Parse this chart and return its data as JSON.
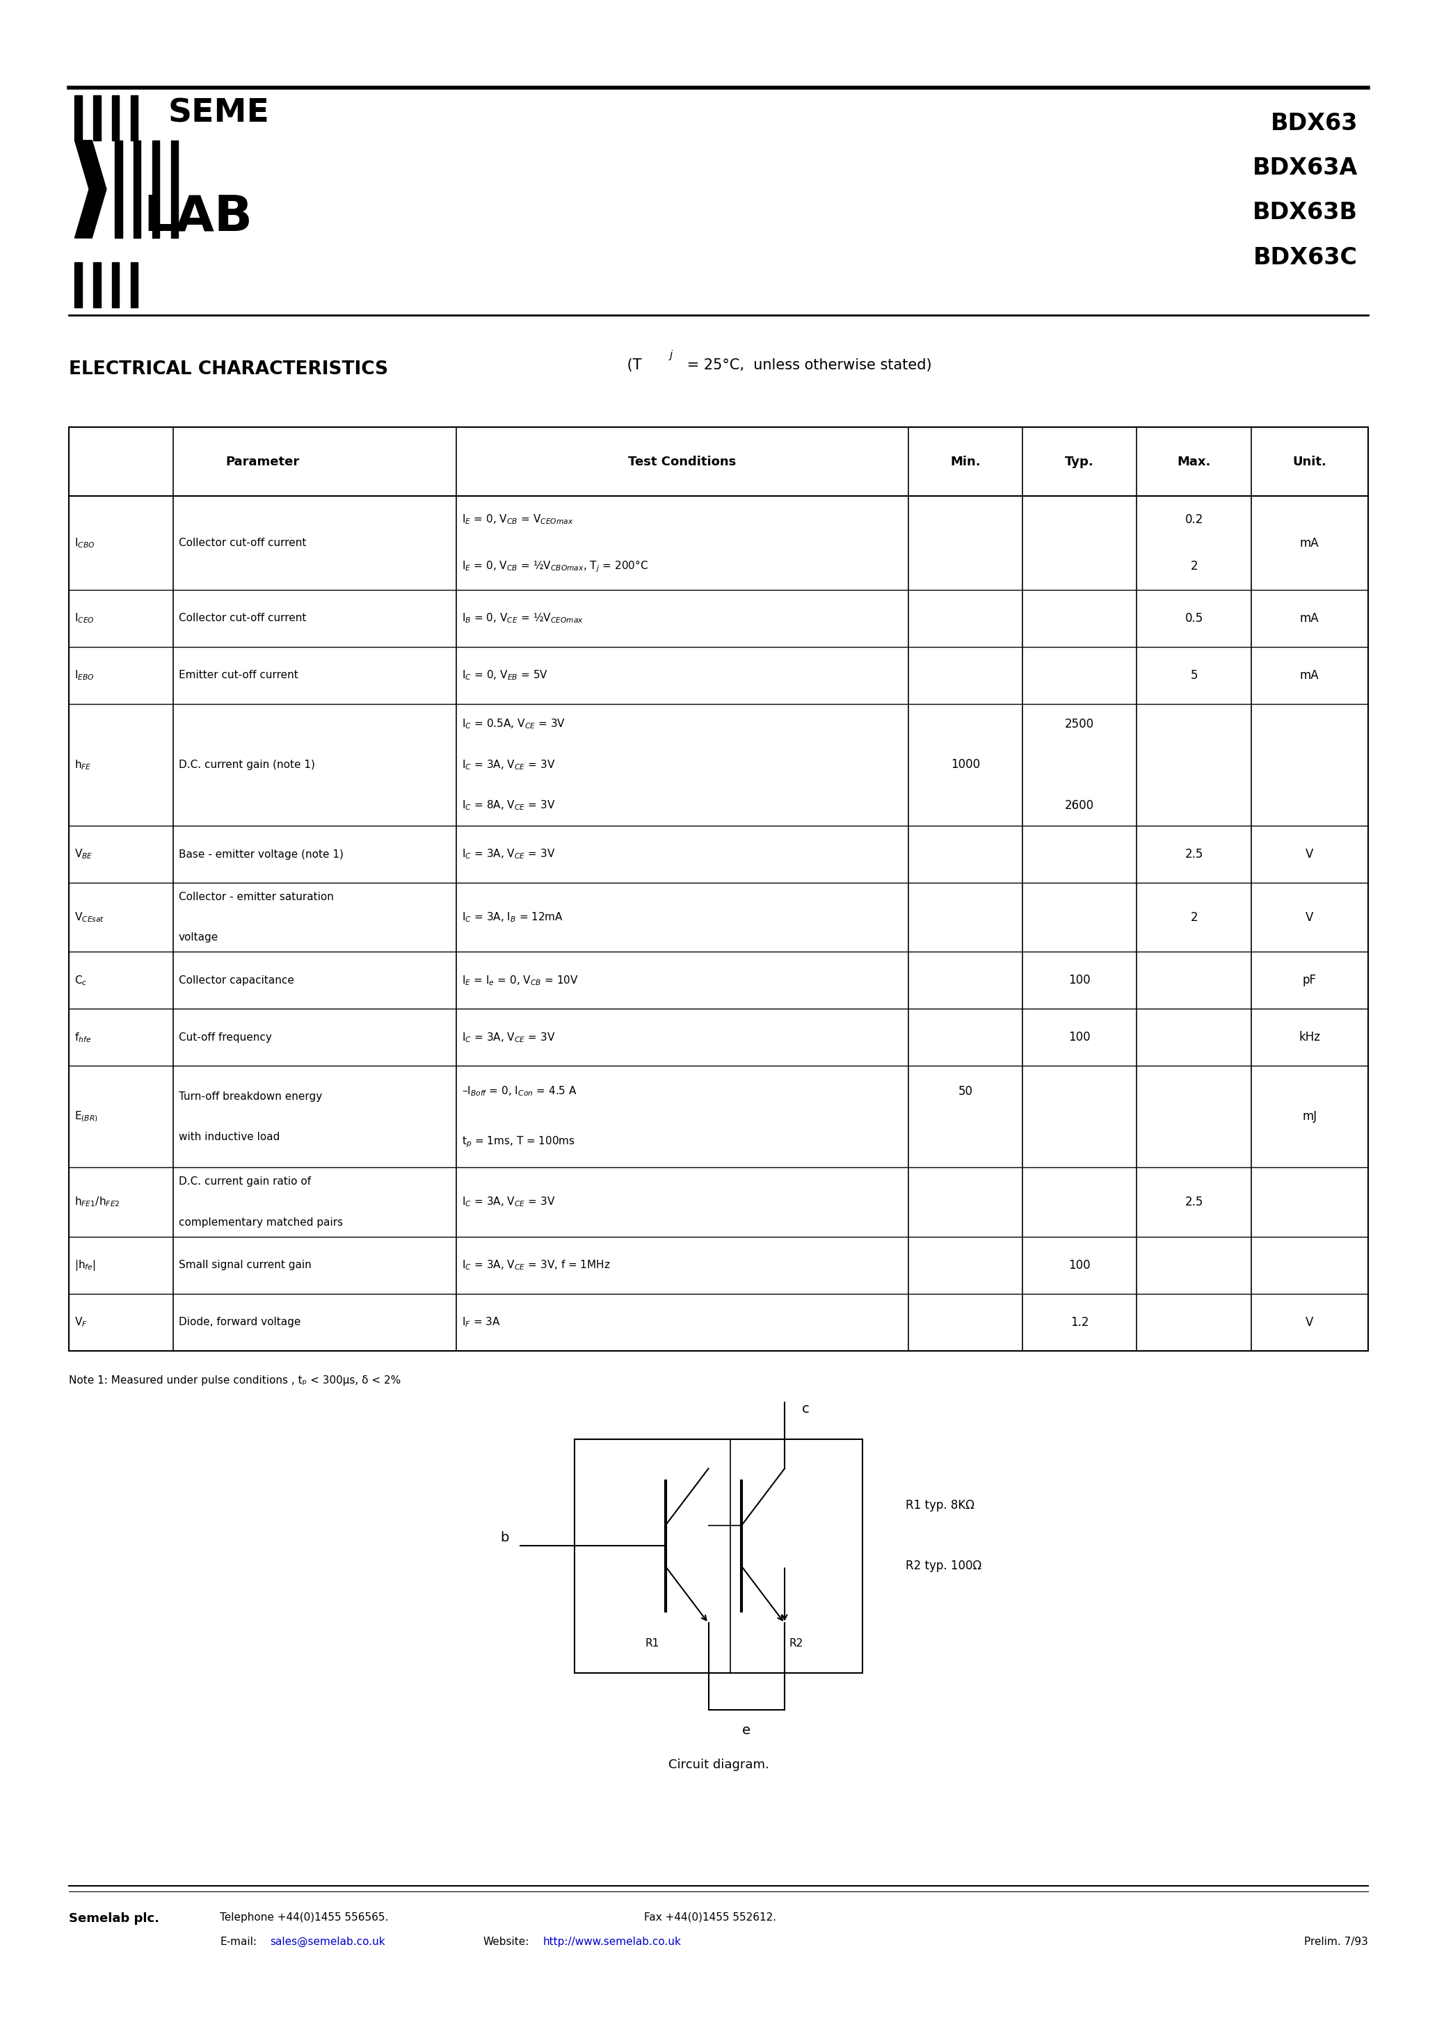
{
  "page_width": 20.66,
  "page_height": 29.24,
  "background_color": "#ffffff",
  "header": {
    "part_numbers": [
      "BDX63",
      "BDX63A",
      "BDX63B",
      "BDX63C"
    ]
  },
  "note": "Note 1: Measured under pulse conditions , tₚ < 300μs, δ < 2%",
  "circuit_label": "Circuit diagram.",
  "footer_company": "Semelab plc.",
  "footer_tel": "Telephone +44(0)1455 556565.",
  "footer_fax": "Fax +44(0)1455 552612.",
  "footer_email_label": "E-mail:",
  "footer_email": "sales@semelab.co.uk",
  "footer_web_label": "Website:",
  "footer_web": "http://www.semelab.co.uk",
  "footer_prelim": "Prelim. 7/93",
  "rows_data": [
    {
      "sym": "I$_{CBO}$",
      "param": "Collector cut-off current",
      "conds": [
        "I$_E$ = 0, V$_{CB}$ = V$_{CEOmax}$",
        "I$_E$ = 0, V$_{CB}$ = ½V$_{CBOmax}$, T$_j$ = 200°C"
      ],
      "mins": [
        "",
        ""
      ],
      "typs": [
        "",
        ""
      ],
      "maxs": [
        "0.2",
        "2"
      ],
      "unit": "mA",
      "nsub": 2
    },
    {
      "sym": "I$_{CEO}$",
      "param": "Collector cut-off current",
      "conds": [
        "I$_B$ = 0, V$_{CE}$ = ½V$_{CEOmax}$"
      ],
      "mins": [
        ""
      ],
      "typs": [
        ""
      ],
      "maxs": [
        "0.5"
      ],
      "unit": "mA",
      "nsub": 1
    },
    {
      "sym": "I$_{EBO}$",
      "param": "Emitter cut-off current",
      "conds": [
        "I$_C$ = 0, V$_{EB}$ = 5V"
      ],
      "mins": [
        ""
      ],
      "typs": [
        ""
      ],
      "maxs": [
        "5"
      ],
      "unit": "mA",
      "nsub": 1
    },
    {
      "sym": "h$_{FE}$",
      "param": "D.C. current gain (note 1)",
      "conds": [
        "I$_C$ = 0.5A, V$_{CE}$ = 3V",
        "I$_C$ = 3A, V$_{CE}$ = 3V",
        "I$_C$ = 8A, V$_{CE}$ = 3V"
      ],
      "mins": [
        "",
        "1000",
        ""
      ],
      "typs": [
        "2500",
        "",
        "2600"
      ],
      "maxs": [
        "",
        "",
        ""
      ],
      "unit": "",
      "nsub": 3
    },
    {
      "sym": "V$_{BE}$",
      "param": "Base - emitter voltage (note 1)",
      "conds": [
        "I$_C$ = 3A, V$_{CE}$ = 3V"
      ],
      "mins": [
        ""
      ],
      "typs": [
        ""
      ],
      "maxs": [
        "2.5"
      ],
      "unit": "V",
      "nsub": 1
    },
    {
      "sym": "V$_{CEsat}$",
      "param": "Collector - emitter saturation\nvoltage",
      "conds": [
        "I$_C$ = 3A, I$_B$ = 12mA"
      ],
      "mins": [
        ""
      ],
      "typs": [
        ""
      ],
      "maxs": [
        "2"
      ],
      "unit": "V",
      "nsub": 1
    },
    {
      "sym": "C$_c$",
      "param": "Collector capacitance",
      "conds": [
        "I$_E$ = I$_e$ = 0, V$_{CB}$ = 10V"
      ],
      "mins": [
        ""
      ],
      "typs": [
        "100"
      ],
      "maxs": [
        ""
      ],
      "unit": "pF",
      "nsub": 1
    },
    {
      "sym": "f$_{hfe}$",
      "param": "Cut-off frequency",
      "conds": [
        "I$_C$ = 3A, V$_{CE}$ = 3V"
      ],
      "mins": [
        ""
      ],
      "typs": [
        "100"
      ],
      "maxs": [
        ""
      ],
      "unit": "kHz",
      "nsub": 1
    },
    {
      "sym": "E$_{(BR)}$",
      "param": "Turn-off breakdown energy\nwith inductive load",
      "conds": [
        "–I$_{Boff}$ = 0, I$_{Con}$ = 4.5 A",
        "t$_p$ = 1ms, T = 100ms"
      ],
      "mins": [
        "50",
        ""
      ],
      "typs": [
        "",
        ""
      ],
      "maxs": [
        "",
        ""
      ],
      "unit": "mJ",
      "nsub": 2
    },
    {
      "sym": "h$_{FE1}$/h$_{FE2}$",
      "param": "D.C. current gain ratio of\ncomplementary matched pairs",
      "conds": [
        "I$_C$ = 3A, V$_{CE}$ = 3V"
      ],
      "mins": [
        ""
      ],
      "typs": [
        ""
      ],
      "maxs": [
        "2.5"
      ],
      "unit": "",
      "nsub": 1
    },
    {
      "sym": "|h$_{fe}$|",
      "param": "Small signal current gain",
      "conds": [
        "I$_C$ = 3A, V$_{CE}$ = 3V, f = 1MHz"
      ],
      "mins": [
        ""
      ],
      "typs": [
        "100"
      ],
      "maxs": [
        ""
      ],
      "unit": "",
      "nsub": 1
    },
    {
      "sym": "V$_F$",
      "param": "Diode, forward voltage",
      "conds": [
        "I$_F$ = 3A"
      ],
      "mins": [
        ""
      ],
      "typs": [
        "1.2"
      ],
      "maxs": [
        ""
      ],
      "unit": "V",
      "nsub": 1
    }
  ]
}
